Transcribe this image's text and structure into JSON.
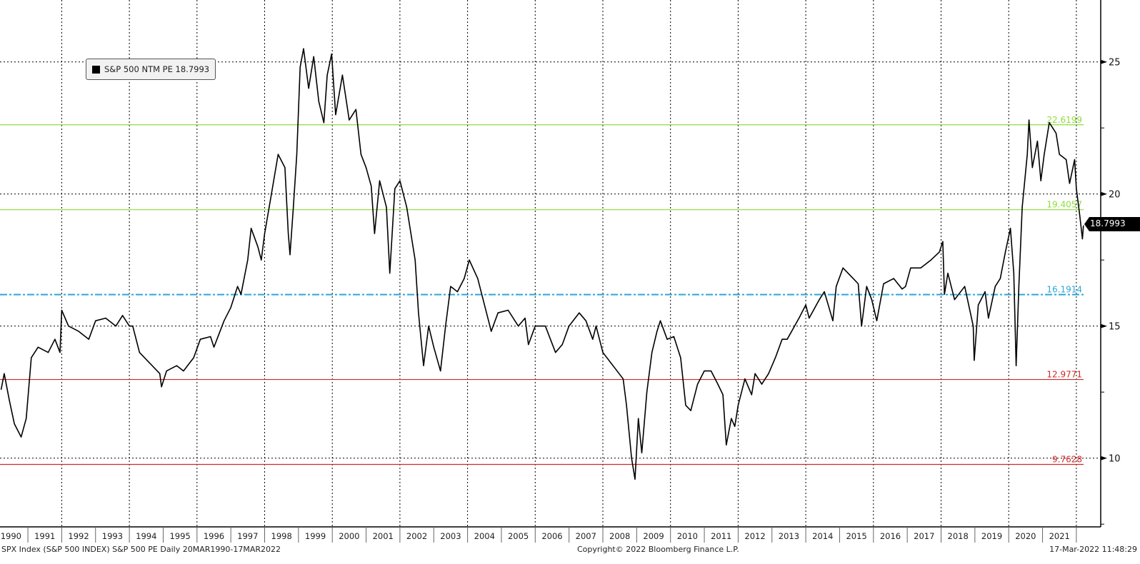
{
  "chart_data": {
    "type": "line",
    "title": "S&P 500 NTM PE",
    "legend": {
      "label": "S&P 500 NTM PE",
      "value": "18.7993",
      "placement": "top-left"
    },
    "last_value_tag": "18.7993",
    "ylim": [
      7.39,
      27.34
    ],
    "xlim": [
      1989.83,
      2022.7
    ],
    "y_ticks": [
      "10",
      "15",
      "20",
      "25"
    ],
    "x_tick_labels": [
      "1990",
      "1991",
      "1992",
      "1993",
      "1994",
      "1995",
      "1996",
      "1997",
      "1998",
      "1999",
      "2000",
      "2001",
      "2002",
      "2003",
      "2004",
      "2005",
      "2006",
      "2007",
      "2008",
      "2009",
      "2010",
      "2011",
      "2012",
      "2013",
      "2014",
      "2015",
      "2016",
      "2017",
      "2018",
      "2019",
      "2020",
      "2021"
    ],
    "grid": true,
    "reference_lines": [
      {
        "label": "22.6199",
        "value": 22.6199,
        "color": "#8fdc3a",
        "style": "solid"
      },
      {
        "label": "19.4057",
        "value": 19.4057,
        "color": "#8fdc3a",
        "style": "solid"
      },
      {
        "label": "16.1914",
        "value": 16.1914,
        "color": "#2aa8d8",
        "style": "dashdot"
      },
      {
        "label": "12.9771",
        "value": 12.9771,
        "color": "#d02a2a",
        "style": "solid"
      },
      {
        "label": "9.7628",
        "value": 9.7628,
        "color": "#d02a2a",
        "style": "solid"
      }
    ],
    "series": [
      {
        "name": "S&P 500 NTM PE",
        "color": "#000000",
        "x": [
          1990.21,
          1990.3,
          1990.45,
          1990.6,
          1990.8,
          1990.95,
          1991.1,
          1991.3,
          1991.6,
          1991.8,
          1991.95,
          1992.0,
          1992.2,
          1992.5,
          1992.8,
          1993.0,
          1993.3,
          1993.6,
          1993.8,
          1994.0,
          1994.1,
          1994.3,
          1994.6,
          1994.9,
          1994.95,
          1995.1,
          1995.4,
          1995.6,
          1995.9,
          1996.1,
          1996.4,
          1996.5,
          1996.8,
          1997.0,
          1997.2,
          1997.3,
          1997.5,
          1997.6,
          1997.8,
          1997.9,
          1998.0,
          1998.2,
          1998.4,
          1998.6,
          1998.7,
          1998.75,
          1998.85,
          1998.95,
          1999.05,
          1999.15,
          1999.3,
          1999.45,
          1999.6,
          1999.75,
          1999.85,
          1999.98,
          2000.1,
          2000.3,
          2000.5,
          2000.7,
          2000.85,
          2001.0,
          2001.15,
          2001.25,
          2001.4,
          2001.6,
          2001.7,
          2001.85,
          2002.0,
          2002.2,
          2002.45,
          2002.55,
          2002.7,
          2002.85,
          2003.0,
          2003.2,
          2003.35,
          2003.5,
          2003.7,
          2003.9,
          2004.05,
          2004.3,
          2004.6,
          2004.7,
          2004.9,
          2005.2,
          2005.5,
          2005.7,
          2005.8,
          2006.0,
          2006.3,
          2006.6,
          2006.8,
          2007.0,
          2007.3,
          2007.5,
          2007.7,
          2007.8,
          2008.0,
          2008.3,
          2008.6,
          2008.7,
          2008.85,
          2008.95,
          2009.05,
          2009.15,
          2009.3,
          2009.45,
          2009.6,
          2009.7,
          2009.9,
          2010.1,
          2010.3,
          2010.45,
          2010.6,
          2010.8,
          2011.0,
          2011.2,
          2011.4,
          2011.55,
          2011.65,
          2011.8,
          2011.9,
          2012.0,
          2012.2,
          2012.4,
          2012.5,
          2012.7,
          2012.9,
          2013.1,
          2013.3,
          2013.45,
          2013.8,
          2014.0,
          2014.1,
          2014.4,
          2014.55,
          2014.8,
          2014.9,
          2015.1,
          2015.4,
          2015.55,
          2015.65,
          2015.8,
          2015.95,
          2016.1,
          2016.3,
          2016.6,
          2016.85,
          2016.95,
          2017.1,
          2017.4,
          2017.7,
          2017.95,
          2018.05,
          2018.1,
          2018.2,
          2018.4,
          2018.7,
          2018.95,
          2018.98,
          2019.1,
          2019.3,
          2019.4,
          2019.6,
          2019.75,
          2019.9,
          2020.05,
          2020.15,
          2020.22,
          2020.3,
          2020.4,
          2020.55,
          2020.6,
          2020.7,
          2020.85,
          2020.95,
          2021.05,
          2021.2,
          2021.4,
          2021.5,
          2021.7,
          2021.8,
          2021.95,
          2022.0,
          2022.1,
          2022.18,
          2022.21
        ],
        "y": [
          12.6,
          13.2,
          12.2,
          11.3,
          10.8,
          11.5,
          13.8,
          14.2,
          14.0,
          14.5,
          14.0,
          15.6,
          15.0,
          14.8,
          14.5,
          15.2,
          15.3,
          15.0,
          15.4,
          15.0,
          15.0,
          14.0,
          13.6,
          13.2,
          12.7,
          13.3,
          13.5,
          13.3,
          13.8,
          14.5,
          14.6,
          14.2,
          15.2,
          15.7,
          16.5,
          16.2,
          17.5,
          18.7,
          18.0,
          17.5,
          18.5,
          20.0,
          21.5,
          21.0,
          18.5,
          17.7,
          19.5,
          21.5,
          24.8,
          25.5,
          24.0,
          25.2,
          23.5,
          22.7,
          24.5,
          25.3,
          23.0,
          24.5,
          22.8,
          23.2,
          21.5,
          21.0,
          20.3,
          18.5,
          20.5,
          19.5,
          17.0,
          20.2,
          20.5,
          19.5,
          17.5,
          15.5,
          13.5,
          15.0,
          14.2,
          13.3,
          15.0,
          16.5,
          16.3,
          16.8,
          17.5,
          16.8,
          15.3,
          14.8,
          15.5,
          15.6,
          15.0,
          15.3,
          14.3,
          15.0,
          15.0,
          14.0,
          14.3,
          15.0,
          15.5,
          15.2,
          14.5,
          15.0,
          14.0,
          13.5,
          13.0,
          12.0,
          10.0,
          9.2,
          11.5,
          10.2,
          12.5,
          14.0,
          14.8,
          15.2,
          14.5,
          14.6,
          13.8,
          12.0,
          11.8,
          12.8,
          13.3,
          13.3,
          12.8,
          12.4,
          10.5,
          11.5,
          11.2,
          12.0,
          13.0,
          12.4,
          13.2,
          12.8,
          13.2,
          13.8,
          14.5,
          14.5,
          15.3,
          15.8,
          15.3,
          16.0,
          16.3,
          15.2,
          16.5,
          17.2,
          16.8,
          16.6,
          15.0,
          16.5,
          16.0,
          15.2,
          16.6,
          16.8,
          16.4,
          16.5,
          17.2,
          17.2,
          17.5,
          17.8,
          18.2,
          16.2,
          17.0,
          16.0,
          16.5,
          15.0,
          13.7,
          15.8,
          16.3,
          15.3,
          16.5,
          16.8,
          17.8,
          18.7,
          17.0,
          13.5,
          16.5,
          19.5,
          21.5,
          22.8,
          21.0,
          22.0,
          20.5,
          21.5,
          22.7,
          22.3,
          21.5,
          21.3,
          20.4,
          21.3,
          20.2,
          19.2,
          18.3,
          18.7993
        ]
      }
    ]
  },
  "footer": {
    "source": "SPX Index (S&P 500 INDEX) S&P 500 PE  Daily 20MAR1990-17MAR2022",
    "copyright": "Copyright© 2022 Bloomberg Finance L.P.",
    "timestamp": "17-Mar-2022 11:48:29"
  }
}
